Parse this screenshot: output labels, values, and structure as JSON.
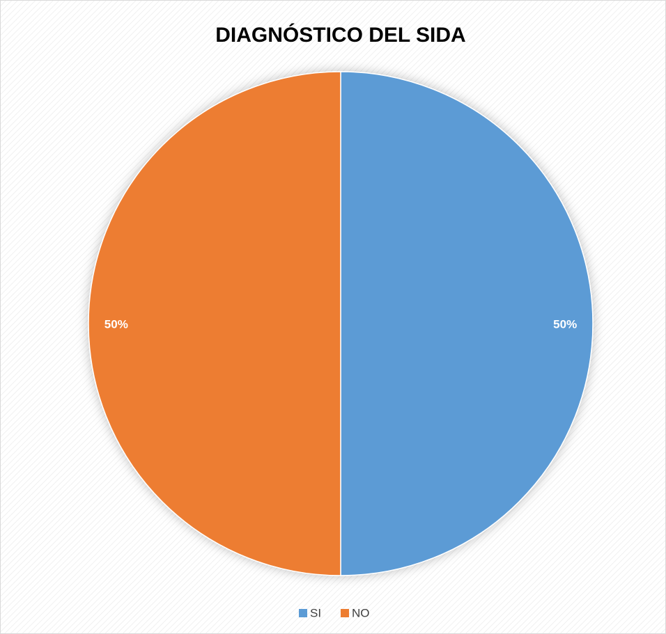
{
  "chart_data": {
    "type": "pie",
    "title": "DIAGNÓSTICO DEL SIDA",
    "categories": [
      "SI",
      "NO"
    ],
    "values": [
      50,
      50
    ],
    "value_labels": [
      "50%",
      "50%"
    ],
    "colors": [
      "#5b9bd5",
      "#ed7d31"
    ],
    "legend": "bottom"
  }
}
